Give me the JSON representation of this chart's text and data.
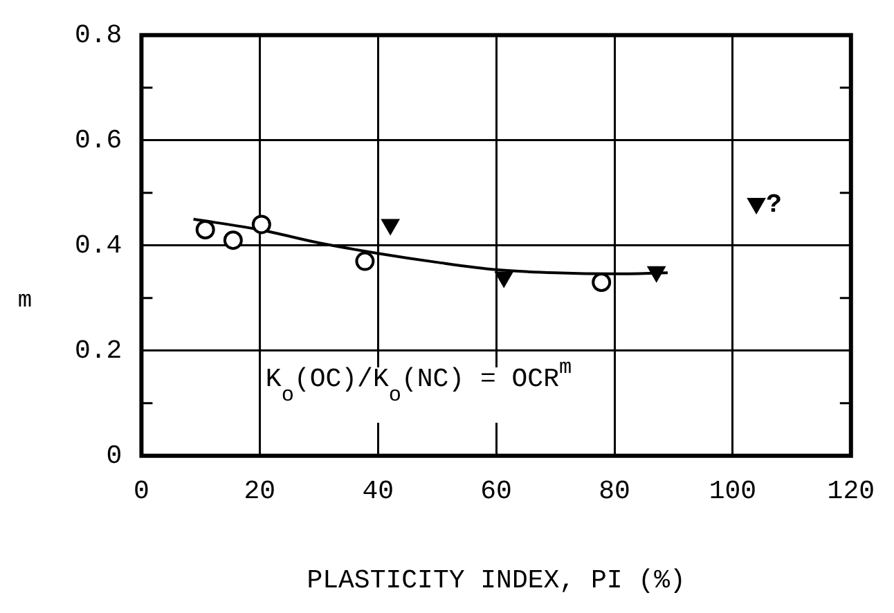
{
  "chart_data": {
    "type": "scatter",
    "xlabel": "PLASTICITY INDEX, PI (%)",
    "ylabel": "m",
    "xlim": [
      0,
      120
    ],
    "xticks": [
      0,
      20,
      40,
      60,
      80,
      100,
      120
    ],
    "ylim": [
      0,
      0.8
    ],
    "yticks": [
      0,
      {
        "value": 0.1,
        "label": null
      },
      0.2,
      {
        "value": 0.3,
        "label": null
      },
      0.4,
      {
        "value": 0.5,
        "label": null
      },
      0.6,
      {
        "value": 0.7,
        "label": null
      },
      0.8
    ],
    "grid": true,
    "legend": false,
    "series": [
      {
        "type": "scatter",
        "marker": "circle",
        "color": "#000000",
        "x": [
          10.8,
          15.5,
          20.3,
          37.8,
          77.8
        ],
        "values": [
          0.43,
          0.41,
          0.44,
          0.37,
          0.33
        ]
      },
      {
        "type": "scatter",
        "marker": "triangle",
        "color": "#000000",
        "x": [
          42.1,
          61.3,
          87.1,
          104
        ],
        "values": [
          0.44,
          0.34,
          0.35,
          0.48
        ]
      },
      {
        "type": "line",
        "marker": "none",
        "line_style": "solid",
        "color": "#000000",
        "x": [
          8.8,
          20,
          30,
          40,
          50,
          60,
          70,
          80,
          89
        ],
        "values": [
          0.45,
          0.43,
          0.405,
          0.385,
          0.368,
          0.354,
          0.348,
          0.346,
          0.348
        ]
      }
    ],
    "annotations": [
      "K$_{o}$(OC)/K$_{o}$(NC) = OCR$^{m}$",
      {
        "text": "?",
        "x": 104,
        "y": 0.48
      }
    ]
  }
}
